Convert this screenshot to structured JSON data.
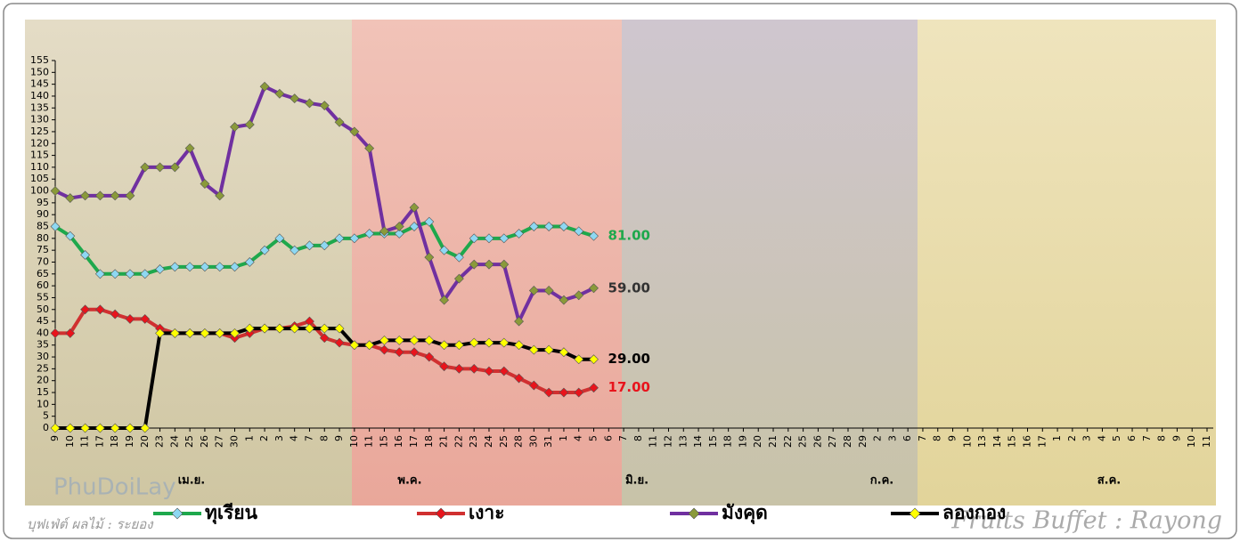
{
  "chart_data": {
    "type": "line",
    "categories": [
      "9",
      "10",
      "11",
      "17",
      "18",
      "19",
      "20",
      "23",
      "24",
      "25",
      "26",
      "27",
      "30",
      "1",
      "2",
      "3",
      "4",
      "7",
      "8",
      "9",
      "10",
      "11",
      "15",
      "16",
      "17",
      "18",
      "21",
      "22",
      "23",
      "24",
      "25",
      "28",
      "30",
      "31",
      "1",
      "4",
      "5",
      "6",
      "7",
      "8",
      "11",
      "12",
      "13",
      "14",
      "15",
      "18",
      "19",
      "20",
      "21",
      "22",
      "25",
      "26",
      "27",
      "28",
      "29",
      "2",
      "3",
      "6",
      "7",
      "8",
      "9",
      "10",
      "13",
      "14",
      "15",
      "16",
      "17",
      "1",
      "2",
      "3",
      "4",
      "5",
      "6",
      "7",
      "8",
      "9",
      "10",
      "11"
    ],
    "months": [
      "เม.ย.",
      "พ.ค.",
      "มิ.ย.",
      "ก.ค.",
      "ส.ค."
    ],
    "ylim": [
      0,
      155
    ],
    "yticks": [
      0,
      5,
      10,
      15,
      20,
      25,
      30,
      35,
      40,
      45,
      50,
      55,
      60,
      65,
      70,
      75,
      80,
      85,
      90,
      95,
      100,
      105,
      110,
      115,
      120,
      125,
      130,
      135,
      140,
      145,
      150,
      155
    ],
    "series": [
      {
        "name": "ทุเรียน",
        "color": "#1ea84c",
        "marker_color": "#8ed8f2",
        "label_color": "#1ea84c",
        "values": [
          85,
          81,
          73,
          65,
          65,
          65,
          65,
          67,
          68,
          68,
          68,
          68,
          68,
          70,
          75,
          80,
          75,
          77,
          77,
          80,
          80,
          82,
          82,
          82,
          85,
          87,
          75,
          72,
          80,
          80,
          80,
          82,
          85,
          85,
          85,
          83,
          81,
          null,
          null,
          null,
          null,
          null,
          null,
          null,
          null,
          null,
          null,
          null,
          null,
          null,
          null,
          null,
          null,
          null,
          null,
          null,
          null,
          null,
          null,
          null,
          null,
          null,
          null,
          null,
          null,
          null,
          null,
          null,
          null,
          null,
          null,
          null,
          null,
          null,
          null,
          null,
          null,
          null
        ],
        "value_labels": [
          null,
          null,
          null,
          null,
          null,
          null,
          null,
          null,
          null,
          null,
          null,
          null,
          null,
          null,
          null,
          null,
          null,
          null,
          null,
          null,
          null,
          null,
          null,
          null,
          null,
          null,
          null,
          null,
          null,
          null,
          null,
          null,
          null,
          null,
          null,
          null,
          "81.00",
          null,
          null,
          null,
          null,
          null,
          null,
          null,
          null,
          null,
          null,
          null,
          null,
          null,
          null,
          null,
          null,
          null,
          null,
          null,
          null,
          null,
          null,
          null,
          null,
          null,
          null,
          null,
          null,
          null,
          null,
          null,
          null,
          null,
          null,
          null,
          null,
          null,
          null,
          null,
          null,
          null
        ]
      },
      {
        "name": "เงาะ",
        "color": "#d03030",
        "marker_color": "#e8141c",
        "label_color": "#e8141c",
        "values": [
          40,
          40,
          50,
          50,
          48,
          46,
          46,
          42,
          40,
          40,
          40,
          40,
          38,
          40,
          42,
          42,
          43,
          45,
          38,
          36,
          35,
          35,
          33,
          32,
          32,
          30,
          26,
          25,
          25,
          24,
          24,
          21,
          18,
          15,
          15,
          15,
          17,
          null,
          null,
          null,
          null,
          null,
          null,
          null,
          null,
          null,
          null,
          null,
          null,
          null,
          null,
          null,
          null,
          null,
          null,
          null,
          null,
          null,
          null,
          null,
          null,
          null,
          null,
          null,
          null,
          null,
          null,
          null,
          null,
          null,
          null,
          null,
          null,
          null,
          null,
          null,
          null,
          null
        ],
        "value_labels": [
          null,
          null,
          null,
          null,
          null,
          null,
          null,
          null,
          null,
          null,
          null,
          null,
          null,
          null,
          null,
          null,
          null,
          null,
          null,
          null,
          null,
          null,
          null,
          null,
          null,
          null,
          null,
          null,
          null,
          null,
          null,
          null,
          null,
          null,
          null,
          null,
          "17.00",
          null,
          null,
          null,
          null,
          null,
          null,
          null,
          null,
          null,
          null,
          null,
          null,
          null,
          null,
          null,
          null,
          null,
          null,
          null,
          null,
          null,
          null,
          null,
          null,
          null,
          null,
          null,
          null,
          null,
          null,
          null,
          null,
          null,
          null,
          null,
          null,
          null,
          null,
          null,
          null,
          null
        ]
      },
      {
        "name": "มังคุด",
        "color": "#7030a0",
        "marker_color": "#8a9a3a",
        "label_color": "#333333",
        "values": [
          100,
          97,
          98,
          98,
          98,
          98,
          110,
          110,
          110,
          118,
          103,
          98,
          127,
          128,
          144,
          141,
          139,
          137,
          136,
          129,
          125,
          118,
          83,
          85,
          93,
          72,
          54,
          63,
          69,
          69,
          69,
          45,
          58,
          58,
          54,
          56,
          59,
          null,
          null,
          null,
          null,
          null,
          null,
          null,
          null,
          null,
          null,
          null,
          null,
          null,
          null,
          null,
          null,
          null,
          null,
          null,
          null,
          null,
          null,
          null,
          null,
          null,
          null,
          null,
          null,
          null,
          null,
          null,
          null,
          null,
          null,
          null,
          null,
          null,
          null,
          null,
          null,
          null
        ],
        "value_labels": [
          null,
          null,
          null,
          null,
          null,
          null,
          null,
          null,
          null,
          null,
          null,
          null,
          null,
          null,
          null,
          null,
          null,
          null,
          null,
          null,
          null,
          null,
          null,
          null,
          null,
          null,
          null,
          null,
          null,
          null,
          null,
          null,
          null,
          null,
          null,
          null,
          "59.00",
          null,
          null,
          null,
          null,
          null,
          null,
          null,
          null,
          null,
          null,
          null,
          null,
          null,
          null,
          null,
          null,
          null,
          null,
          null,
          null,
          null,
          null,
          null,
          null,
          null,
          null,
          null,
          null,
          null,
          null,
          null,
          null,
          null,
          null,
          null,
          null,
          null,
          null,
          null,
          null,
          null
        ]
      },
      {
        "name": "ลองกอง",
        "color": "#000000",
        "marker_color": "#ffff00",
        "label_color": "#000000",
        "values": [
          0,
          0,
          0,
          0,
          0,
          0,
          0,
          40,
          40,
          40,
          40,
          40,
          40,
          42,
          42,
          42,
          42,
          42,
          42,
          42,
          35,
          35,
          37,
          37,
          37,
          37,
          35,
          35,
          36,
          36,
          36,
          35,
          33,
          33,
          32,
          29,
          29,
          null,
          null,
          null,
          null,
          null,
          null,
          null,
          null,
          null,
          null,
          null,
          null,
          null,
          null,
          null,
          null,
          null,
          null,
          null,
          null,
          null,
          null,
          null,
          null,
          null,
          null,
          null,
          null,
          null,
          null,
          null,
          null,
          null,
          null,
          null,
          null,
          null,
          null,
          null,
          null,
          null
        ],
        "value_labels": [
          null,
          null,
          null,
          null,
          null,
          null,
          null,
          null,
          null,
          null,
          null,
          null,
          null,
          null,
          null,
          null,
          null,
          null,
          null,
          null,
          null,
          null,
          null,
          null,
          null,
          null,
          null,
          null,
          null,
          null,
          null,
          null,
          null,
          null,
          null,
          null,
          "29.00",
          null,
          null,
          null,
          null,
          null,
          null,
          null,
          null,
          null,
          null,
          null,
          null,
          null,
          null,
          null,
          null,
          null,
          null,
          null,
          null,
          null,
          null,
          null,
          null,
          null,
          null,
          null,
          null,
          null,
          null,
          null,
          null,
          null,
          null,
          null,
          null,
          null,
          null,
          null,
          null,
          null
        ]
      }
    ],
    "watermark_left": "บุฟเฟ่ต์ ผลไม้ : ระยอง",
    "watermark_right": "Fruits Buffet : Rayong",
    "logo": "PhuDoiLay"
  }
}
